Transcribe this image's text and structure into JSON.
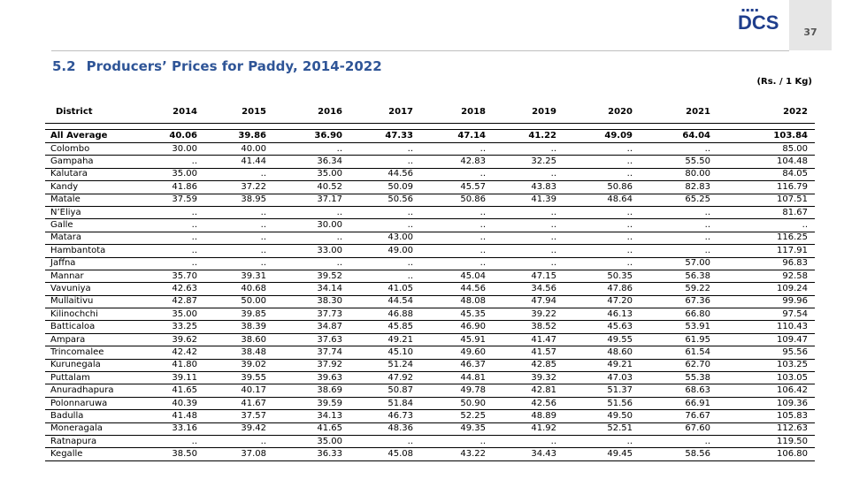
{
  "header": {
    "logo_text": "DCS",
    "logo_dots": "▪▪▪▪",
    "page_number": "37"
  },
  "title": {
    "number": "5.2",
    "text": "Producers’ Prices for Paddy, 2014-2022"
  },
  "unit": "(Rs. / 1 Kg)",
  "table": {
    "columns": [
      "District",
      "2014",
      "2015",
      "2016",
      "2017",
      "2018",
      "2019",
      "2020",
      "2021",
      "2022"
    ],
    "average": [
      "All Average",
      "40.06",
      "39.86",
      "36.90",
      "47.33",
      "47.14",
      "41.22",
      "49.09",
      "64.04",
      "103.84"
    ],
    "rows": [
      [
        "Colombo",
        "30.00",
        "40.00",
        "..",
        "..",
        "..",
        "..",
        "..",
        "..",
        "85.00"
      ],
      [
        "Gampaha",
        "..",
        "41.44",
        "36.34",
        "..",
        "42.83",
        "32.25",
        "..",
        "55.50",
        "104.48"
      ],
      [
        "Kalutara",
        "35.00",
        "..",
        "35.00",
        "44.56",
        "..",
        "..",
        "..",
        "80.00",
        "84.05"
      ],
      [
        "Kandy",
        "41.86",
        "37.22",
        "40.52",
        "50.09",
        "45.57",
        "43.83",
        "50.86",
        "82.83",
        "116.79"
      ],
      [
        "Matale",
        "37.59",
        "38.95",
        "37.17",
        "50.56",
        "50.86",
        "41.39",
        "48.64",
        "65.25",
        "107.51"
      ],
      [
        "N’Eliya",
        "..",
        "..",
        "..",
        "..",
        "..",
        "..",
        "..",
        "..",
        "81.67"
      ],
      [
        "Galle",
        "..",
        "..",
        "30.00",
        "..",
        "..",
        "..",
        "..",
        "..",
        ".."
      ],
      [
        "Matara",
        "..",
        "..",
        "..",
        "43.00",
        "..",
        "..",
        "..",
        "..",
        "116.25"
      ],
      [
        "Hambantota",
        "..",
        "..",
        "33.00",
        "49.00",
        "..",
        "..",
        "..",
        "..",
        "117.91"
      ],
      [
        "Jaffna",
        "..",
        "..",
        "..",
        "..",
        "..",
        "..",
        "..",
        "57.00",
        "96.83"
      ],
      [
        "Mannar",
        "35.70",
        "39.31",
        "39.52",
        "..",
        "45.04",
        "47.15",
        "50.35",
        "56.38",
        "92.58"
      ],
      [
        "Vavuniya",
        "42.63",
        "40.68",
        "34.14",
        "41.05",
        "44.56",
        "34.56",
        "47.86",
        "59.22",
        "109.24"
      ],
      [
        "Mullaitivu",
        "42.87",
        "50.00",
        "38.30",
        "44.54",
        "48.08",
        "47.94",
        "47.20",
        "67.36",
        "99.96"
      ],
      [
        "Kilinochchi",
        "35.00",
        "39.85",
        "37.73",
        "46.88",
        "45.35",
        "39.22",
        "46.13",
        "66.80",
        "97.54"
      ],
      [
        "Batticaloa",
        "33.25",
        "38.39",
        "34.87",
        "45.85",
        "46.90",
        "38.52",
        "45.63",
        "53.91",
        "110.43"
      ],
      [
        "Ampara",
        "39.62",
        "38.60",
        "37.63",
        "49.21",
        "45.91",
        "41.47",
        "49.55",
        "61.95",
        "109.47"
      ],
      [
        "Trincomalee",
        "42.42",
        "38.48",
        "37.74",
        "45.10",
        "49.60",
        "41.57",
        "48.60",
        "61.54",
        "95.56"
      ],
      [
        "Kurunegala",
        "41.80",
        "39.02",
        "37.92",
        "51.24",
        "46.37",
        "42.85",
        "49.21",
        "62.70",
        "103.25"
      ],
      [
        "Puttalam",
        "39.11",
        "39.55",
        "39.63",
        "47.92",
        "44.81",
        "39.32",
        "47.03",
        "55.38",
        "103.05"
      ],
      [
        "Anuradhapura",
        "41.65",
        "40.17",
        "38.69",
        "50.87",
        "49.78",
        "42.81",
        "51.37",
        "68.63",
        "106.42"
      ],
      [
        "Polonnaruwa",
        "40.39",
        "41.67",
        "39.59",
        "51.84",
        "50.90",
        "42.56",
        "51.56",
        "66.91",
        "109.36"
      ],
      [
        "Badulla",
        "41.48",
        "37.57",
        "34.13",
        "46.73",
        "52.25",
        "48.89",
        "49.50",
        "76.67",
        "105.83"
      ],
      [
        "Moneragala",
        "33.16",
        "39.42",
        "41.65",
        "48.36",
        "49.35",
        "41.92",
        "52.51",
        "67.60",
        "112.63"
      ],
      [
        "Ratnapura",
        "..",
        "..",
        "35.00",
        "..",
        "..",
        "..",
        "..",
        "..",
        "119.50"
      ],
      [
        "Kegalle",
        "38.50",
        "37.08",
        "36.33",
        "45.08",
        "43.22",
        "34.43",
        "49.45",
        "58.56",
        "106.80"
      ]
    ]
  }
}
